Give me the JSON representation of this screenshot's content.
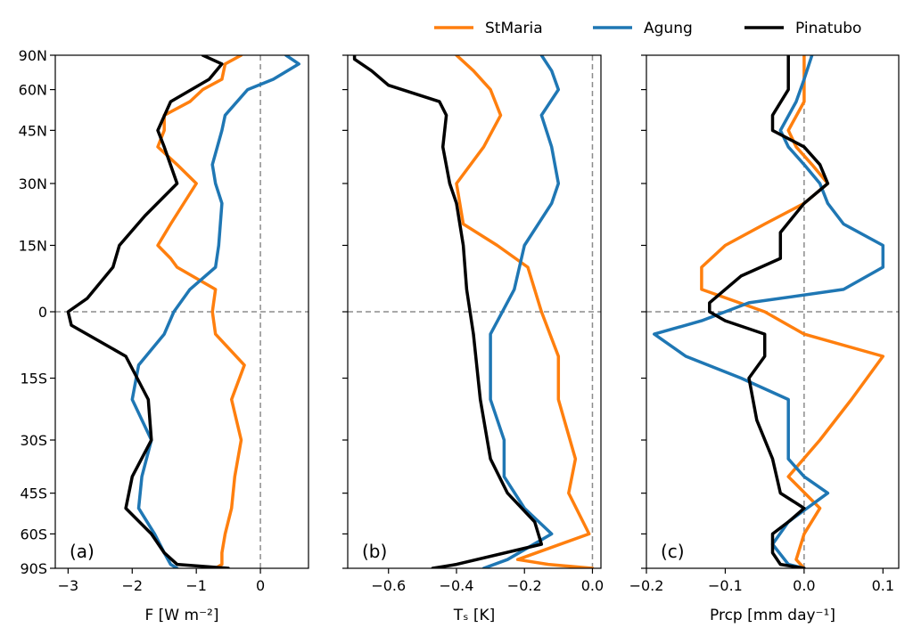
{
  "legend": [
    {
      "name": "StMaria",
      "color": "#ff7f0e"
    },
    {
      "name": "Agung",
      "color": "#1f77b4"
    },
    {
      "name": "Pinatubo",
      "color": "#000000"
    }
  ],
  "y_ticks": [
    {
      "label": "90N",
      "lat": 90
    },
    {
      "label": "60N",
      "lat": 60
    },
    {
      "label": "45N",
      "lat": 45
    },
    {
      "label": "30N",
      "lat": 30
    },
    {
      "label": "15N",
      "lat": 15
    },
    {
      "label": "0",
      "lat": 0
    },
    {
      "label": "15S",
      "lat": -15
    },
    {
      "label": "30S",
      "lat": -30
    },
    {
      "label": "45S",
      "lat": -45
    },
    {
      "label": "60S",
      "lat": -60
    },
    {
      "label": "90S",
      "lat": -90
    }
  ],
  "chart_data": [
    {
      "type": "line",
      "panel": "(a)",
      "xlabel": "F [W m⁻²]",
      "xlim": [
        -3.2,
        0.75
      ],
      "ylim": [
        -90,
        90
      ],
      "y_scale": "sine-latitude",
      "xticks": [
        {
          "v": -3,
          "label": "−3"
        },
        {
          "v": -2,
          "label": "−2"
        },
        {
          "v": -1,
          "label": "−1"
        },
        {
          "v": 0,
          "label": "0"
        }
      ],
      "ref_x": 0,
      "series": [
        {
          "name": "StMaria",
          "color": "#ff7f0e",
          "points": [
            [
              -0.7,
              -90
            ],
            [
              -0.6,
              -80
            ],
            [
              -0.6,
              -70
            ],
            [
              -0.55,
              -60
            ],
            [
              -0.45,
              -50
            ],
            [
              -0.4,
              -40
            ],
            [
              -0.3,
              -30
            ],
            [
              -0.45,
              -20
            ],
            [
              -0.25,
              -12
            ],
            [
              -0.7,
              -5
            ],
            [
              -0.75,
              0
            ],
            [
              -0.7,
              5
            ],
            [
              -1.3,
              10
            ],
            [
              -1.4,
              12
            ],
            [
              -1.6,
              15
            ],
            [
              -1.4,
              20
            ],
            [
              -1.0,
              30
            ],
            [
              -1.3,
              35
            ],
            [
              -1.6,
              40
            ],
            [
              -1.5,
              45
            ],
            [
              -1.5,
              50
            ],
            [
              -1.1,
              55
            ],
            [
              -0.9,
              60
            ],
            [
              -0.6,
              65
            ],
            [
              -0.55,
              75
            ],
            [
              -0.3,
              90
            ]
          ]
        },
        {
          "name": "Agung",
          "color": "#1f77b4",
          "points": [
            [
              -1.3,
              -90
            ],
            [
              -1.4,
              -80
            ],
            [
              -1.5,
              -70
            ],
            [
              -1.65,
              -60
            ],
            [
              -1.9,
              -50
            ],
            [
              -1.85,
              -40
            ],
            [
              -1.7,
              -30
            ],
            [
              -2.0,
              -20
            ],
            [
              -1.9,
              -12
            ],
            [
              -1.5,
              -5
            ],
            [
              -1.35,
              0
            ],
            [
              -1.1,
              5
            ],
            [
              -0.7,
              10
            ],
            [
              -0.65,
              15
            ],
            [
              -0.6,
              25
            ],
            [
              -0.7,
              30
            ],
            [
              -0.75,
              35
            ],
            [
              -0.6,
              45
            ],
            [
              -0.55,
              50
            ],
            [
              -0.2,
              60
            ],
            [
              0.2,
              65
            ],
            [
              0.6,
              75
            ],
            [
              0.4,
              90
            ]
          ]
        },
        {
          "name": "Pinatubo",
          "color": "#000000",
          "points": [
            [
              -0.5,
              -90
            ],
            [
              -1.3,
              -80
            ],
            [
              -1.5,
              -70
            ],
            [
              -1.7,
              -60
            ],
            [
              -2.1,
              -50
            ],
            [
              -2.0,
              -40
            ],
            [
              -1.7,
              -30
            ],
            [
              -1.75,
              -20
            ],
            [
              -2.1,
              -10
            ],
            [
              -2.95,
              -3
            ],
            [
              -3.0,
              0
            ],
            [
              -2.7,
              3
            ],
            [
              -2.3,
              10
            ],
            [
              -2.2,
              15
            ],
            [
              -1.8,
              22
            ],
            [
              -1.3,
              30
            ],
            [
              -1.5,
              40
            ],
            [
              -1.6,
              45
            ],
            [
              -1.4,
              55
            ],
            [
              -0.8,
              65
            ],
            [
              -0.6,
              75
            ],
            [
              -0.9,
              90
            ]
          ]
        }
      ]
    },
    {
      "type": "line",
      "panel": "(b)",
      "xlabel": "Tₛ [K]",
      "xlim": [
        -0.72,
        0.025
      ],
      "ylim": [
        -90,
        90
      ],
      "y_scale": "sine-latitude",
      "xticks": [
        {
          "v": -0.6,
          "label": "−0.6"
        },
        {
          "v": -0.4,
          "label": "−0.4"
        },
        {
          "v": -0.2,
          "label": "−0.2"
        },
        {
          "v": 0,
          "label": "0.0"
        }
      ],
      "ref_x": 0,
      "series": [
        {
          "name": "StMaria",
          "color": "#ff7f0e",
          "points": [
            [
              0.0,
              -90
            ],
            [
              -0.13,
              -80
            ],
            [
              -0.22,
              -75
            ],
            [
              -0.01,
              -60
            ],
            [
              -0.07,
              -45
            ],
            [
              -0.05,
              -35
            ],
            [
              -0.1,
              -20
            ],
            [
              -0.1,
              -10
            ],
            [
              -0.15,
              0
            ],
            [
              -0.19,
              10
            ],
            [
              -0.28,
              15
            ],
            [
              -0.38,
              20
            ],
            [
              -0.4,
              30
            ],
            [
              -0.32,
              40
            ],
            [
              -0.27,
              50
            ],
            [
              -0.3,
              60
            ],
            [
              -0.35,
              70
            ],
            [
              -0.4,
              90
            ]
          ]
        },
        {
          "name": "Agung",
          "color": "#1f77b4",
          "points": [
            [
              -0.32,
              -90
            ],
            [
              -0.25,
              -75
            ],
            [
              -0.12,
              -60
            ],
            [
              -0.2,
              -50
            ],
            [
              -0.26,
              -40
            ],
            [
              -0.26,
              -30
            ],
            [
              -0.3,
              -20
            ],
            [
              -0.3,
              -5
            ],
            [
              -0.23,
              5
            ],
            [
              -0.2,
              15
            ],
            [
              -0.12,
              25
            ],
            [
              -0.1,
              30
            ],
            [
              -0.12,
              40
            ],
            [
              -0.15,
              50
            ],
            [
              -0.1,
              60
            ],
            [
              -0.12,
              70
            ],
            [
              -0.15,
              90
            ]
          ]
        },
        {
          "name": "Pinatubo",
          "color": "#000000",
          "points": [
            [
              -0.47,
              -90
            ],
            [
              -0.4,
              -80
            ],
            [
              -0.15,
              -65
            ],
            [
              -0.17,
              -55
            ],
            [
              -0.25,
              -45
            ],
            [
              -0.3,
              -35
            ],
            [
              -0.33,
              -20
            ],
            [
              -0.35,
              -5
            ],
            [
              -0.37,
              5
            ],
            [
              -0.38,
              15
            ],
            [
              -0.4,
              25
            ],
            [
              -0.42,
              30
            ],
            [
              -0.44,
              40
            ],
            [
              -0.43,
              50
            ],
            [
              -0.45,
              55
            ],
            [
              -0.6,
              62
            ],
            [
              -0.65,
              70
            ],
            [
              -0.7,
              80
            ],
            [
              -0.7,
              90
            ]
          ]
        }
      ]
    },
    {
      "type": "line",
      "panel": "(c)",
      "xlabel": "Prcp [mm day⁻¹]",
      "xlim": [
        -0.2,
        0.12
      ],
      "ylim": [
        -90,
        90
      ],
      "y_scale": "sine-latitude",
      "xticks": [
        {
          "v": -0.2,
          "label": "−0.2"
        },
        {
          "v": -0.1,
          "label": "−0.1"
        },
        {
          "v": 0,
          "label": "0.0"
        },
        {
          "v": 0.1,
          "label": "0.1"
        }
      ],
      "ref_x": 0,
      "series": [
        {
          "name": "StMaria",
          "color": "#ff7f0e",
          "points": [
            [
              0.0,
              -90
            ],
            [
              -0.01,
              -75
            ],
            [
              0.0,
              -60
            ],
            [
              0.02,
              -50
            ],
            [
              -0.02,
              -40
            ],
            [
              0.02,
              -30
            ],
            [
              0.06,
              -20
            ],
            [
              0.1,
              -10
            ],
            [
              0.0,
              -5
            ],
            [
              -0.05,
              0
            ],
            [
              -0.13,
              5
            ],
            [
              -0.13,
              10
            ],
            [
              -0.1,
              15
            ],
            [
              -0.05,
              20
            ],
            [
              0.0,
              25
            ],
            [
              0.03,
              30
            ],
            [
              0.01,
              35
            ],
            [
              -0.01,
              40
            ],
            [
              -0.02,
              45
            ],
            [
              0.0,
              55
            ],
            [
              0.0,
              60
            ],
            [
              0.0,
              90
            ]
          ]
        },
        {
          "name": "Agung",
          "color": "#1f77b4",
          "points": [
            [
              0.0,
              -90
            ],
            [
              -0.02,
              -80
            ],
            [
              -0.04,
              -65
            ],
            [
              -0.02,
              -55
            ],
            [
              0.03,
              -45
            ],
            [
              0.0,
              -40
            ],
            [
              -0.02,
              -35
            ],
            [
              -0.02,
              -20
            ],
            [
              -0.08,
              -15
            ],
            [
              -0.15,
              -10
            ],
            [
              -0.19,
              -5
            ],
            [
              -0.13,
              -2
            ],
            [
              -0.07,
              2
            ],
            [
              0.05,
              5
            ],
            [
              0.1,
              10
            ],
            [
              0.1,
              15
            ],
            [
              0.05,
              20
            ],
            [
              0.03,
              25
            ],
            [
              0.02,
              30
            ],
            [
              0.0,
              35
            ],
            [
              -0.02,
              40
            ],
            [
              -0.03,
              45
            ],
            [
              -0.01,
              55
            ],
            [
              0.0,
              65
            ],
            [
              0.01,
              90
            ]
          ]
        },
        {
          "name": "Pinatubo",
          "color": "#000000",
          "points": [
            [
              0.0,
              -90
            ],
            [
              -0.03,
              -80
            ],
            [
              -0.04,
              -70
            ],
            [
              -0.04,
              -60
            ],
            [
              -0.02,
              -55
            ],
            [
              0.0,
              -50
            ],
            [
              -0.03,
              -45
            ],
            [
              -0.04,
              -35
            ],
            [
              -0.06,
              -25
            ],
            [
              -0.07,
              -15
            ],
            [
              -0.05,
              -10
            ],
            [
              -0.05,
              -5
            ],
            [
              -0.1,
              -2
            ],
            [
              -0.12,
              0
            ],
            [
              -0.12,
              2
            ],
            [
              -0.1,
              5
            ],
            [
              -0.08,
              8
            ],
            [
              -0.03,
              12
            ],
            [
              -0.03,
              18
            ],
            [
              0.0,
              25
            ],
            [
              0.03,
              30
            ],
            [
              0.02,
              35
            ],
            [
              0.0,
              40
            ],
            [
              -0.04,
              45
            ],
            [
              -0.04,
              50
            ],
            [
              -0.02,
              60
            ],
            [
              -0.02,
              70
            ],
            [
              -0.02,
              90
            ]
          ]
        }
      ]
    }
  ]
}
